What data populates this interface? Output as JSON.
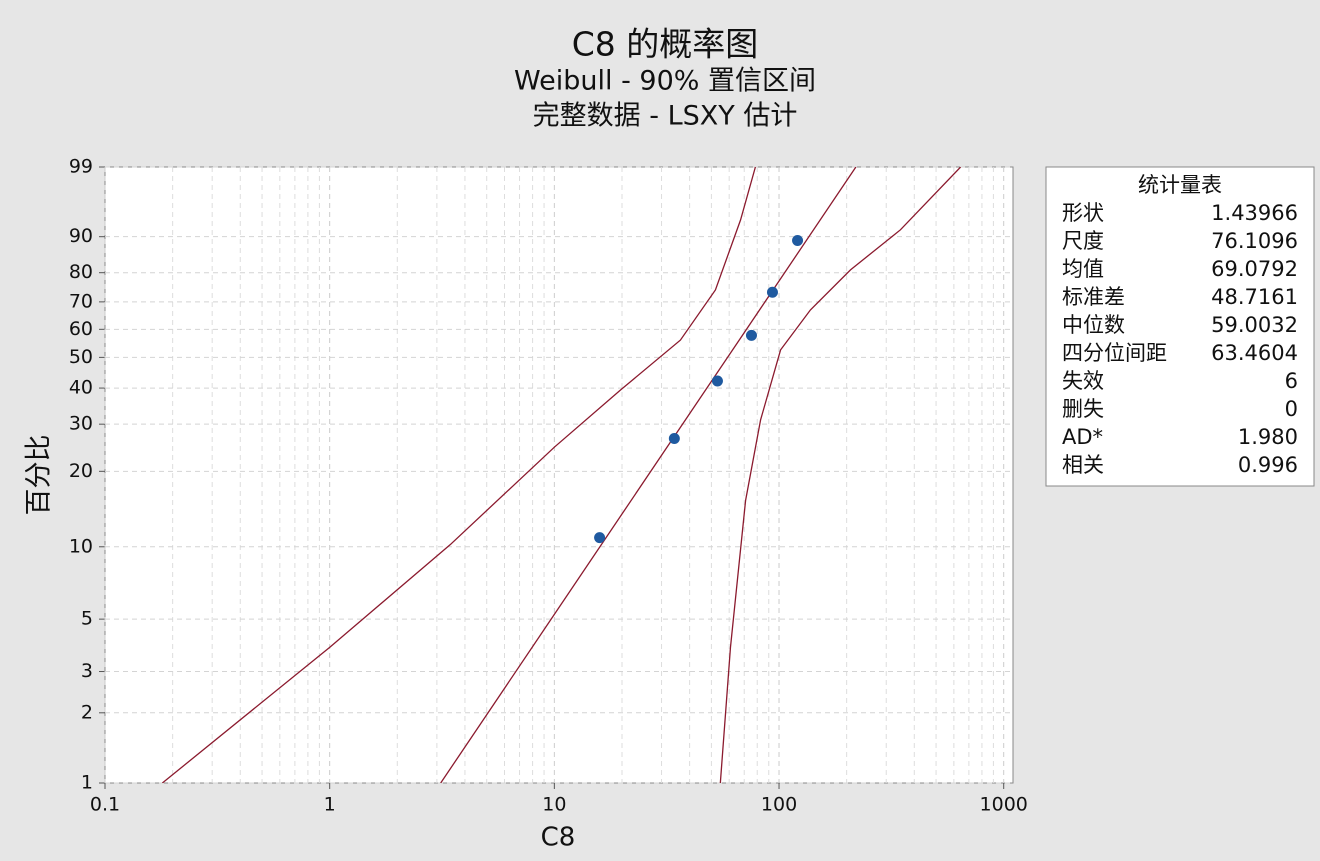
{
  "chart_data": {
    "type": "probability",
    "title": "C8 的概率图",
    "subtitle": [
      "Weibull - 90% 置信区间",
      "完整数据 - LSXY 估计"
    ],
    "xlabel": "C8",
    "ylabel": "百分比",
    "x_scale": "log",
    "y_scale": "weibull",
    "xlim": [
      0.1,
      1100
    ],
    "ylim": [
      1,
      99
    ],
    "xticks": [
      0.1,
      1,
      10,
      100,
      1000
    ],
    "yticks": [
      1,
      2,
      3,
      5,
      10,
      20,
      30,
      40,
      50,
      60,
      70,
      80,
      90,
      99
    ],
    "grid": true,
    "points": {
      "color": "#1f5aa0",
      "x": [
        15.9,
        34.2,
        53.2,
        75.4,
        93.5,
        120.9
      ],
      "y": [
        10.9,
        26.6,
        42.2,
        57.8,
        73.4,
        89.1
      ]
    },
    "fit": {
      "color": "#8b1a2e",
      "x": [
        3.12,
        219.8
      ],
      "y": [
        1,
        99
      ]
    },
    "ci_lower": {
      "color": "#8b1a2e",
      "x": [
        0.18,
        1,
        3.44,
        10,
        19.7,
        36.4,
        52.1,
        67.4,
        78.5
      ],
      "y": [
        1,
        3.8,
        10.2,
        24.7,
        39.4,
        56.1,
        74.2,
        93.4,
        99
      ]
    },
    "ci_upper": {
      "color": "#8b1a2e",
      "x": [
        54.8,
        60.8,
        71.0,
        82.8,
        101.6,
        138,
        208,
        347,
        643
      ],
      "y": [
        1,
        3.8,
        15.4,
        31.1,
        52.6,
        67.1,
        80.9,
        91.5,
        99
      ]
    },
    "stats": {
      "title": "统计量表",
      "rows": [
        [
          "形状",
          "1.43966"
        ],
        [
          "尺度",
          "76.1096"
        ],
        [
          "均值",
          "69.0792"
        ],
        [
          "标准差",
          "48.7161"
        ],
        [
          "中位数",
          "59.0032"
        ],
        [
          "四分位间距",
          "63.4604"
        ],
        [
          "失效",
          "6"
        ],
        [
          "删失",
          "0"
        ],
        [
          "AD*",
          "1.980"
        ],
        [
          "相关",
          "0.996"
        ]
      ]
    }
  }
}
